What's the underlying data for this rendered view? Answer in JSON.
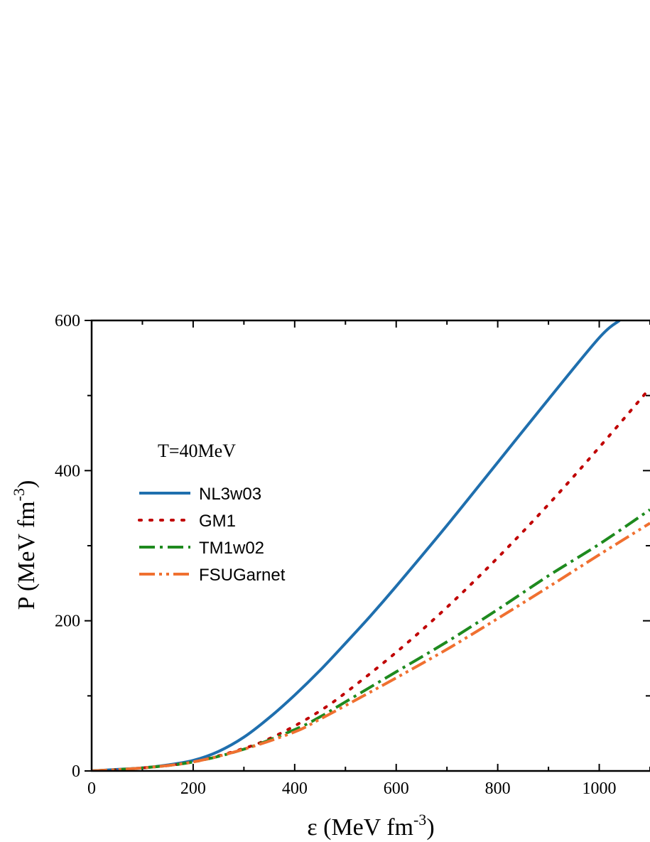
{
  "chart_data": {
    "type": "line",
    "annotation": "T=40MeV",
    "xlabel": {
      "base": "ε (MeV fm",
      "sup": "-3",
      "close": ")"
    },
    "ylabel": {
      "base": "P (MeV fm",
      "sup": "-3",
      "close": ")"
    },
    "xlim": [
      0,
      1100
    ],
    "ylim": [
      0,
      600
    ],
    "xticks": [
      0,
      200,
      400,
      600,
      800,
      1000
    ],
    "yticks": [
      0,
      200,
      400,
      600
    ],
    "legend_position": "center-left",
    "series": [
      {
        "name": "NL3w03",
        "color": "#1f6fae",
        "style": "solid",
        "x": [
          0,
          50,
          100,
          150,
          200,
          250,
          300,
          350,
          400,
          450,
          500,
          550,
          600,
          700,
          800,
          900,
          1000,
          1040
        ],
        "y": [
          0,
          2,
          4,
          8,
          14,
          26,
          45,
          71,
          101,
          134,
          170,
          207,
          246,
          327,
          411,
          495,
          577,
          600
        ]
      },
      {
        "name": "GM1",
        "color": "#c00000",
        "style": "dotted",
        "x": [
          0,
          100,
          200,
          300,
          350,
          400,
          450,
          500,
          600,
          700,
          800,
          900,
          1000,
          1100
        ],
        "y": [
          0,
          4,
          12,
          30,
          43,
          60,
          80,
          104,
          158,
          218,
          284,
          355,
          431,
          510
        ]
      },
      {
        "name": "TM1w02",
        "color": "#1e8a1e",
        "style": "dashdot",
        "x": [
          0,
          100,
          200,
          300,
          400,
          450,
          500,
          600,
          700,
          800,
          900,
          1000,
          1100
        ],
        "y": [
          0,
          4,
          12,
          29,
          55,
          72,
          92,
          132,
          172,
          215,
          260,
          302,
          348
        ]
      },
      {
        "name": "FSUGarnet",
        "color": "#f07030",
        "style": "dashdotdot",
        "x": [
          0,
          100,
          200,
          300,
          400,
          450,
          500,
          600,
          700,
          800,
          900,
          1000,
          1100
        ],
        "y": [
          0,
          4,
          12,
          29,
          52,
          69,
          87,
          124,
          162,
          203,
          245,
          288,
          330
        ]
      }
    ]
  }
}
